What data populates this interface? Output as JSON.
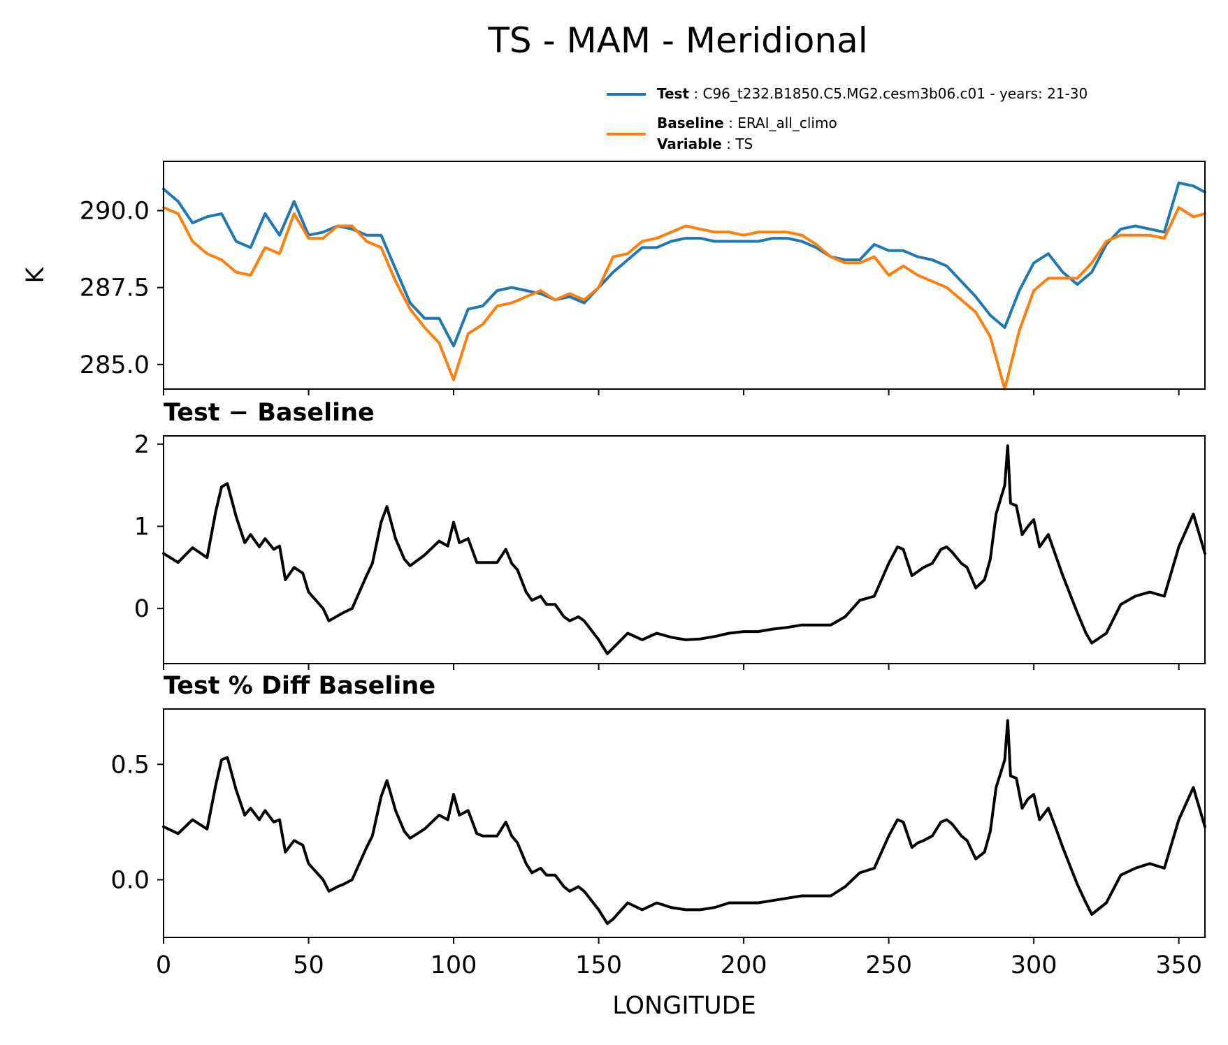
{
  "title": "TS - MAM - Meridional",
  "legend": {
    "placement": "top-right, above top panel",
    "test_key": "Test",
    "test_value": "C96_t232.B1850.C5.MG2.cesm3b06.c01 - years: 21-30",
    "baseline_key": "Baseline",
    "baseline_value": "ERAI_all_climo",
    "variable_key": "Variable",
    "variable_value": "TS"
  },
  "colors": {
    "test": "#1f77b4",
    "baseline": "#ff7f0e",
    "diff": "#000000"
  },
  "chart_data": [
    {
      "type": "line",
      "title": "",
      "xlabel": "",
      "ylabel": "K",
      "xlim": [
        0,
        359
      ],
      "ylim": [
        284.2,
        291.6
      ],
      "yticks": [
        285.0,
        287.5,
        290.0
      ],
      "ytick_labels": [
        "285.0",
        "287.5",
        "290.0"
      ],
      "xticks": [
        0,
        50,
        100,
        150,
        200,
        250,
        300,
        350
      ],
      "x": [
        0,
        5,
        10,
        15,
        20,
        25,
        30,
        35,
        40,
        45,
        50,
        55,
        60,
        65,
        70,
        75,
        80,
        85,
        90,
        95,
        100,
        105,
        110,
        115,
        120,
        125,
        130,
        135,
        140,
        145,
        150,
        155,
        160,
        165,
        170,
        175,
        180,
        185,
        190,
        195,
        200,
        205,
        210,
        215,
        220,
        225,
        230,
        235,
        240,
        245,
        250,
        255,
        260,
        265,
        270,
        275,
        280,
        285,
        290,
        295,
        300,
        305,
        310,
        315,
        320,
        325,
        330,
        335,
        340,
        345,
        350,
        355,
        359
      ],
      "series": [
        {
          "name": "Test",
          "color": "#1f77b4",
          "values": [
            290.7,
            290.3,
            289.6,
            289.8,
            289.9,
            289.0,
            288.8,
            289.9,
            289.2,
            290.3,
            289.2,
            289.3,
            289.5,
            289.4,
            289.2,
            289.2,
            288.1,
            287.0,
            286.5,
            286.5,
            285.6,
            286.8,
            286.9,
            287.4,
            287.5,
            287.4,
            287.3,
            287.1,
            287.2,
            287.0,
            287.5,
            288.0,
            288.4,
            288.8,
            288.8,
            289.0,
            289.1,
            289.1,
            289.0,
            289.0,
            289.0,
            289.0,
            289.1,
            289.1,
            289.0,
            288.8,
            288.5,
            288.4,
            288.4,
            288.9,
            288.7,
            288.7,
            288.5,
            288.4,
            288.2,
            287.7,
            287.2,
            286.6,
            286.2,
            287.4,
            288.3,
            288.6,
            288.0,
            287.6,
            288.0,
            288.9,
            289.4,
            289.5,
            289.4,
            289.3,
            290.9,
            290.8,
            290.6
          ]
        },
        {
          "name": "Baseline",
          "color": "#ff7f0e",
          "values": [
            290.1,
            289.9,
            289.0,
            288.6,
            288.4,
            288.0,
            287.9,
            288.8,
            288.6,
            289.9,
            289.1,
            289.1,
            289.5,
            289.5,
            289.0,
            288.8,
            287.7,
            286.8,
            286.2,
            285.7,
            284.5,
            286.0,
            286.3,
            286.9,
            287.0,
            287.2,
            287.4,
            287.1,
            287.3,
            287.1,
            287.5,
            288.5,
            288.6,
            289.0,
            289.1,
            289.3,
            289.5,
            289.4,
            289.3,
            289.3,
            289.2,
            289.3,
            289.3,
            289.3,
            289.2,
            288.9,
            288.5,
            288.3,
            288.3,
            288.5,
            287.9,
            288.2,
            287.9,
            287.7,
            287.5,
            287.1,
            286.7,
            285.9,
            284.2,
            286.1,
            287.4,
            287.8,
            287.8,
            287.8,
            288.3,
            289.0,
            289.2,
            289.2,
            289.2,
            289.1,
            290.1,
            289.8,
            289.9
          ]
        }
      ]
    },
    {
      "type": "line",
      "title": "Test − Baseline",
      "xlabel": "",
      "ylabel": "",
      "xlim": [
        0,
        359
      ],
      "ylim": [
        -0.67,
        2.1
      ],
      "yticks": [
        0,
        1,
        2
      ],
      "ytick_labels": [
        "0",
        "1",
        "2"
      ],
      "xticks": [
        0,
        50,
        100,
        150,
        200,
        250,
        300,
        350
      ],
      "x": [
        0,
        5,
        10,
        15,
        18,
        20,
        22,
        25,
        28,
        30,
        33,
        35,
        38,
        40,
        42,
        45,
        48,
        50,
        55,
        57,
        60,
        62,
        65,
        70,
        72,
        75,
        77,
        80,
        83,
        85,
        90,
        95,
        98,
        100,
        102,
        105,
        108,
        110,
        113,
        115,
        118,
        120,
        122,
        125,
        127,
        130,
        132,
        135,
        138,
        140,
        143,
        145,
        150,
        153,
        155,
        160,
        165,
        170,
        175,
        180,
        185,
        190,
        195,
        200,
        205,
        210,
        215,
        220,
        225,
        230,
        235,
        240,
        245,
        250,
        253,
        255,
        258,
        260,
        262,
        265,
        268,
        270,
        272,
        275,
        277,
        280,
        283,
        285,
        287,
        290,
        291,
        292,
        294,
        296,
        298,
        300,
        302,
        305,
        308,
        310,
        315,
        318,
        320,
        325,
        330,
        335,
        340,
        345,
        350,
        355,
        359
      ],
      "series": [
        {
          "name": "",
          "color": "#000000",
          "values": [
            0.67,
            0.56,
            0.74,
            0.62,
            1.18,
            1.48,
            1.52,
            1.12,
            0.8,
            0.9,
            0.75,
            0.85,
            0.72,
            0.76,
            0.35,
            0.5,
            0.43,
            0.2,
            0.0,
            -0.15,
            -0.09,
            -0.05,
            0.0,
            0.4,
            0.55,
            1.05,
            1.24,
            0.85,
            0.6,
            0.52,
            0.65,
            0.82,
            0.76,
            1.05,
            0.8,
            0.85,
            0.56,
            0.56,
            0.56,
            0.56,
            0.72,
            0.55,
            0.47,
            0.2,
            0.1,
            0.15,
            0.05,
            0.05,
            -0.1,
            -0.15,
            -0.1,
            -0.15,
            -0.38,
            -0.55,
            -0.48,
            -0.3,
            -0.38,
            -0.3,
            -0.35,
            -0.38,
            -0.37,
            -0.34,
            -0.3,
            -0.28,
            -0.28,
            -0.25,
            -0.23,
            -0.2,
            -0.2,
            -0.2,
            -0.1,
            0.1,
            0.15,
            0.55,
            0.75,
            0.72,
            0.4,
            0.45,
            0.5,
            0.55,
            0.72,
            0.75,
            0.68,
            0.55,
            0.5,
            0.25,
            0.35,
            0.6,
            1.15,
            1.5,
            1.98,
            1.28,
            1.25,
            0.9,
            1.0,
            1.08,
            0.75,
            0.9,
            0.6,
            0.4,
            -0.05,
            -0.3,
            -0.42,
            -0.3,
            0.05,
            0.15,
            0.2,
            0.15,
            0.75,
            1.15,
            0.67
          ]
        }
      ]
    },
    {
      "type": "line",
      "title": "Test % Diff Baseline",
      "xlabel": "LONGITUDE",
      "ylabel": "",
      "xlim": [
        0,
        359
      ],
      "ylim": [
        -0.25,
        0.74
      ],
      "yticks": [
        0.0,
        0.5
      ],
      "ytick_labels": [
        "0.0",
        "0.5"
      ],
      "xticks": [
        0,
        50,
        100,
        150,
        200,
        250,
        300,
        350
      ],
      "xtick_labels": [
        "0",
        "50",
        "100",
        "150",
        "200",
        "250",
        "300",
        "350"
      ],
      "x": [
        0,
        5,
        10,
        15,
        18,
        20,
        22,
        25,
        28,
        30,
        33,
        35,
        38,
        40,
        42,
        45,
        48,
        50,
        55,
        57,
        60,
        62,
        65,
        70,
        72,
        75,
        77,
        80,
        83,
        85,
        90,
        95,
        98,
        100,
        102,
        105,
        108,
        110,
        113,
        115,
        118,
        120,
        122,
        125,
        127,
        130,
        132,
        135,
        138,
        140,
        143,
        145,
        150,
        153,
        155,
        160,
        165,
        170,
        175,
        180,
        185,
        190,
        195,
        200,
        205,
        210,
        215,
        220,
        225,
        230,
        235,
        240,
        245,
        250,
        253,
        255,
        258,
        260,
        262,
        265,
        268,
        270,
        272,
        275,
        277,
        280,
        283,
        285,
        287,
        290,
        291,
        292,
        294,
        296,
        298,
        300,
        302,
        305,
        308,
        310,
        315,
        318,
        320,
        325,
        330,
        335,
        340,
        345,
        350,
        355,
        359
      ],
      "series": [
        {
          "name": "",
          "color": "#000000",
          "values": [
            0.23,
            0.2,
            0.26,
            0.22,
            0.41,
            0.52,
            0.53,
            0.39,
            0.28,
            0.31,
            0.26,
            0.3,
            0.25,
            0.26,
            0.12,
            0.17,
            0.15,
            0.07,
            0.0,
            -0.05,
            -0.03,
            -0.02,
            0.0,
            0.14,
            0.19,
            0.36,
            0.43,
            0.3,
            0.21,
            0.18,
            0.22,
            0.28,
            0.26,
            0.37,
            0.28,
            0.3,
            0.2,
            0.19,
            0.19,
            0.19,
            0.25,
            0.19,
            0.16,
            0.07,
            0.03,
            0.05,
            0.02,
            0.02,
            -0.03,
            -0.05,
            -0.03,
            -0.05,
            -0.13,
            -0.19,
            -0.17,
            -0.1,
            -0.13,
            -0.1,
            -0.12,
            -0.13,
            -0.13,
            -0.12,
            -0.1,
            -0.1,
            -0.1,
            -0.09,
            -0.08,
            -0.07,
            -0.07,
            -0.07,
            -0.03,
            0.03,
            0.05,
            0.19,
            0.26,
            0.25,
            0.14,
            0.16,
            0.17,
            0.19,
            0.25,
            0.26,
            0.24,
            0.19,
            0.17,
            0.09,
            0.12,
            0.21,
            0.4,
            0.52,
            0.69,
            0.45,
            0.44,
            0.31,
            0.35,
            0.37,
            0.26,
            0.31,
            0.21,
            0.14,
            -0.02,
            -0.1,
            -0.15,
            -0.1,
            0.02,
            0.05,
            0.07,
            0.05,
            0.26,
            0.4,
            0.23
          ]
        }
      ]
    }
  ]
}
